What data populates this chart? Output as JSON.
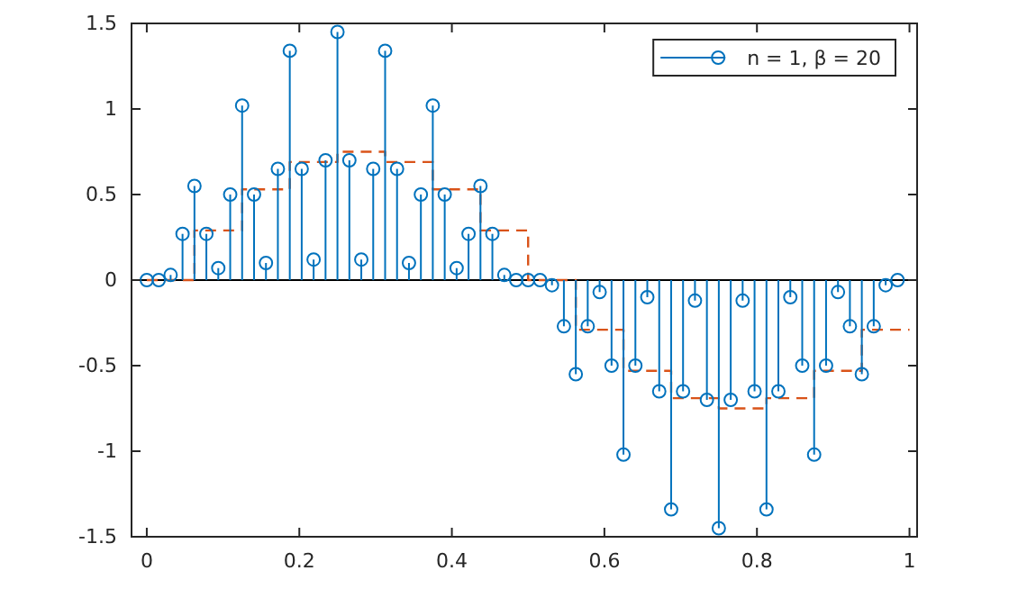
{
  "chart_data": {
    "type": "lollipop",
    "xlim": [
      -0.02,
      1.01
    ],
    "ylim": [
      -1.5,
      1.5
    ],
    "xticks": [
      0,
      0.2,
      0.4,
      0.6,
      0.8,
      1
    ],
    "yticks": [
      -1.5,
      -1,
      -0.5,
      0,
      0.5,
      1,
      1.5
    ],
    "legend": "top right",
    "grid": false,
    "ref_lines": [
      {
        "axis": "y",
        "value": 0,
        "color": "#000000"
      }
    ],
    "series": [
      {
        "name": "n = 1, β = 20",
        "color": "#0072bd",
        "marker": "circle",
        "x": [
          0,
          0.015625,
          0.03125,
          0.046875,
          0.0625,
          0.078125,
          0.09375,
          0.109375,
          0.125,
          0.140625,
          0.15625,
          0.171875,
          0.1875,
          0.203125,
          0.21875,
          0.234375,
          0.25,
          0.265625,
          0.28125,
          0.296875,
          0.3125,
          0.328125,
          0.34375,
          0.359375,
          0.375,
          0.390625,
          0.40625,
          0.421875,
          0.4375,
          0.453125,
          0.46875,
          0.484375,
          0.5,
          0.515625,
          0.53125,
          0.546875,
          0.5625,
          0.578125,
          0.59375,
          0.609375,
          0.625,
          0.640625,
          0.65625,
          0.671875,
          0.6875,
          0.703125,
          0.71875,
          0.734375,
          0.75,
          0.765625,
          0.78125,
          0.796875,
          0.8125,
          0.828125,
          0.84375,
          0.859375,
          0.875,
          0.890625,
          0.90625,
          0.921875,
          0.9375,
          0.953125,
          0.96875,
          0.984375
        ],
        "values": [
          0,
          0,
          0.03,
          0.27,
          0.55,
          0.27,
          0.07,
          0.5,
          1.02,
          0.5,
          0.1,
          0.65,
          1.34,
          0.65,
          0.12,
          0.7,
          1.45,
          0.7,
          0.12,
          0.65,
          1.34,
          0.65,
          0.1,
          0.5,
          1.02,
          0.5,
          0.07,
          0.27,
          0.55,
          0.27,
          0.03,
          0,
          0,
          0,
          -0.03,
          -0.27,
          -0.55,
          -0.27,
          -0.07,
          -0.5,
          -1.02,
          -0.5,
          -0.1,
          -0.65,
          -1.34,
          -0.65,
          -0.12,
          -0.7,
          -1.45,
          -0.7,
          -0.12,
          -0.65,
          -1.34,
          -0.65,
          -0.1,
          -0.5,
          -1.02,
          -0.5,
          -0.07,
          -0.27,
          -0.55,
          -0.27,
          -0.03,
          0
        ]
      },
      {
        "type": "step",
        "color": "#d95319",
        "line_style": "dashed",
        "x": [
          0,
          0.0625,
          0.125,
          0.1875,
          0.25,
          0.3125,
          0.375,
          0.4375,
          0.5,
          0.5625,
          0.625,
          0.6875,
          0.75,
          0.8125,
          0.875,
          0.9375,
          1
        ],
        "values": [
          0,
          0.29,
          0.53,
          0.69,
          0.75,
          0.69,
          0.53,
          0.29,
          0,
          -0.29,
          -0.53,
          -0.69,
          -0.75,
          -0.69,
          -0.53,
          -0.29,
          -0.29
        ]
      }
    ]
  }
}
